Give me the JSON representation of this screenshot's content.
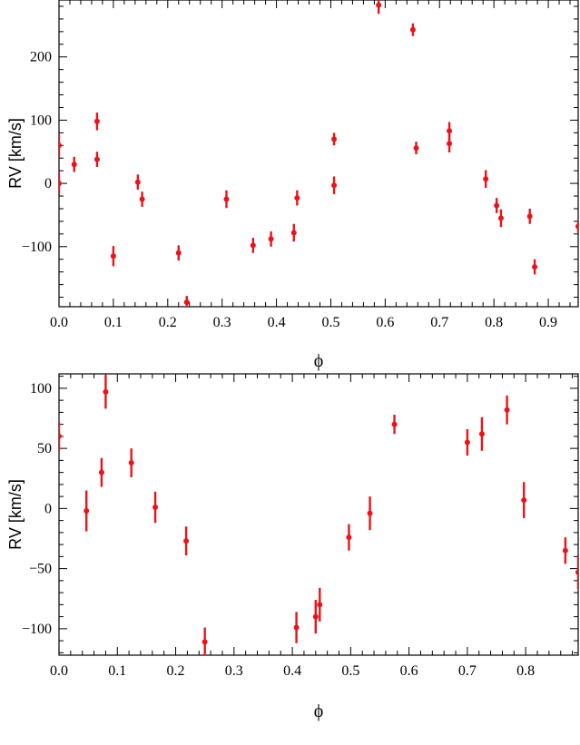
{
  "chart_data": [
    {
      "type": "scatter",
      "xlabel": "ϕ",
      "ylabel": "RV [km/s]",
      "xlim": [
        0.0,
        0.955
      ],
      "ylim": [
        -195,
        290
      ],
      "xticks": [
        0.0,
        0.1,
        0.2,
        0.3,
        0.4,
        0.5,
        0.6,
        0.7,
        0.8,
        0.9
      ],
      "xtick_labels": [
        "0.0",
        "0.1",
        "0.2",
        "0.3",
        "0.4",
        "0.5",
        "0.6",
        "0.7",
        "0.8",
        "0.9"
      ],
      "yticks": [
        -100,
        0,
        100,
        200
      ],
      "ytick_labels": [
        "−100",
        "0",
        "100",
        "200"
      ],
      "grid": false,
      "marker_color": "#e8141b",
      "points": [
        {
          "x": 0.0,
          "y": 60,
          "err": 18
        },
        {
          "x": 0.0,
          "y": 0,
          "err": 18
        },
        {
          "x": 0.028,
          "y": 30,
          "err": 12
        },
        {
          "x": 0.07,
          "y": 98,
          "err": 14
        },
        {
          "x": 0.07,
          "y": 38,
          "err": 12
        },
        {
          "x": 0.1,
          "y": -115,
          "err": 16
        },
        {
          "x": 0.145,
          "y": 2,
          "err": 12
        },
        {
          "x": 0.153,
          "y": -25,
          "err": 12
        },
        {
          "x": 0.22,
          "y": -110,
          "err": 12
        },
        {
          "x": 0.235,
          "y": -188,
          "err": 10
        },
        {
          "x": 0.308,
          "y": -25,
          "err": 14
        },
        {
          "x": 0.357,
          "y": -98,
          "err": 12
        },
        {
          "x": 0.39,
          "y": -88,
          "err": 12
        },
        {
          "x": 0.432,
          "y": -78,
          "err": 14
        },
        {
          "x": 0.438,
          "y": -23,
          "err": 12
        },
        {
          "x": 0.506,
          "y": 70,
          "err": 10
        },
        {
          "x": 0.506,
          "y": -3,
          "err": 14
        },
        {
          "x": 0.588,
          "y": 282,
          "err": 14
        },
        {
          "x": 0.651,
          "y": 243,
          "err": 10
        },
        {
          "x": 0.657,
          "y": 56,
          "err": 10
        },
        {
          "x": 0.718,
          "y": 83,
          "err": 14
        },
        {
          "x": 0.718,
          "y": 63,
          "err": 14
        },
        {
          "x": 0.785,
          "y": 7,
          "err": 14
        },
        {
          "x": 0.805,
          "y": -35,
          "err": 12
        },
        {
          "x": 0.813,
          "y": -55,
          "err": 14
        },
        {
          "x": 0.866,
          "y": -52,
          "err": 12
        },
        {
          "x": 0.875,
          "y": -132,
          "err": 12
        },
        {
          "x": 0.955,
          "y": -68,
          "err": 10
        }
      ]
    },
    {
      "type": "scatter",
      "xlabel": "ϕ",
      "ylabel": "RV [km/s]",
      "xlim": [
        0.0,
        0.89
      ],
      "ylim": [
        -122,
        112
      ],
      "xticks": [
        0.0,
        0.1,
        0.2,
        0.3,
        0.4,
        0.5,
        0.6,
        0.7,
        0.8
      ],
      "xtick_labels": [
        "0.0",
        "0.1",
        "0.2",
        "0.3",
        "0.4",
        "0.5",
        "0.6",
        "0.7",
        "0.8"
      ],
      "yticks": [
        -100,
        -50,
        0,
        50,
        100
      ],
      "ytick_labels": [
        "−100",
        "−50",
        "0",
        "50",
        "100"
      ],
      "grid": false,
      "marker_color": "#e8141b",
      "points": [
        {
          "x": 0.0,
          "y": 60,
          "err": 12
        },
        {
          "x": 0.047,
          "y": -2,
          "err": 17
        },
        {
          "x": 0.073,
          "y": 30,
          "err": 12
        },
        {
          "x": 0.08,
          "y": 97,
          "err": 14
        },
        {
          "x": 0.124,
          "y": 38,
          "err": 12
        },
        {
          "x": 0.165,
          "y": 1,
          "err": 13
        },
        {
          "x": 0.218,
          "y": -27,
          "err": 12
        },
        {
          "x": 0.25,
          "y": -111,
          "err": 12
        },
        {
          "x": 0.407,
          "y": -99,
          "err": 13
        },
        {
          "x": 0.44,
          "y": -90,
          "err": 14
        },
        {
          "x": 0.447,
          "y": -80,
          "err": 14
        },
        {
          "x": 0.497,
          "y": -24,
          "err": 11
        },
        {
          "x": 0.533,
          "y": -4,
          "err": 14
        },
        {
          "x": 0.575,
          "y": 70,
          "err": 8
        },
        {
          "x": 0.7,
          "y": 55,
          "err": 11
        },
        {
          "x": 0.725,
          "y": 62,
          "err": 14
        },
        {
          "x": 0.768,
          "y": 82,
          "err": 12
        },
        {
          "x": 0.797,
          "y": 7,
          "err": 15
        },
        {
          "x": 0.868,
          "y": -35,
          "err": 11
        },
        {
          "x": 0.89,
          "y": -53,
          "err": 14
        }
      ]
    }
  ]
}
